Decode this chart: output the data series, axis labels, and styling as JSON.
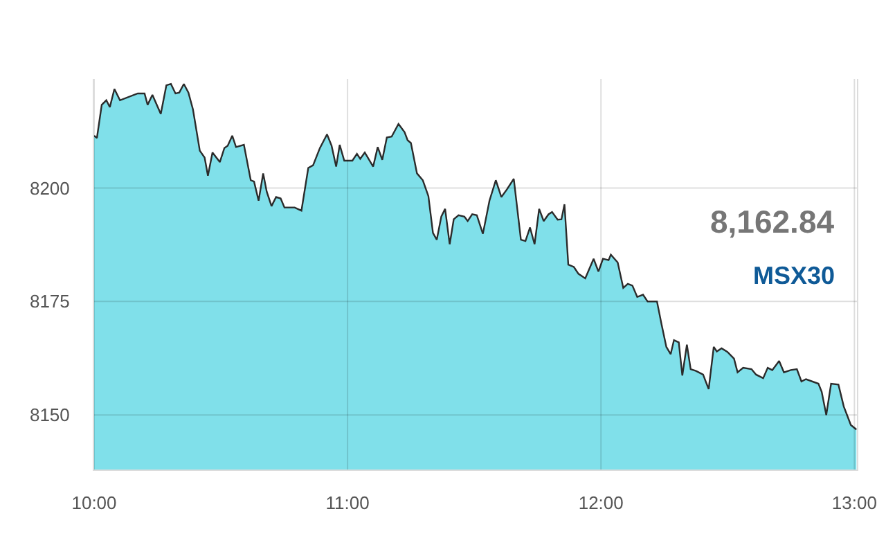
{
  "chart_data": {
    "type": "area",
    "color": "#80e0ea",
    "x": [
      10.0,
      10.011,
      10.03,
      10.048,
      10.062,
      10.08,
      10.102,
      10.172,
      10.199,
      10.211,
      10.23,
      10.263,
      10.285,
      10.303,
      10.321,
      10.336,
      10.354,
      10.372,
      10.39,
      10.417,
      10.436,
      10.449,
      10.467,
      10.496,
      10.514,
      10.527,
      10.545,
      10.56,
      10.591,
      10.618,
      10.631,
      10.649,
      10.667,
      10.681,
      10.7,
      10.718,
      10.736,
      10.751,
      10.791,
      10.818,
      10.845,
      10.864,
      10.891,
      10.919,
      10.937,
      10.955,
      10.969,
      10.987,
      11.019,
      11.037,
      11.05,
      11.068,
      11.101,
      11.119,
      11.137,
      11.155,
      11.174,
      11.201,
      11.225,
      11.237,
      11.25,
      11.274,
      11.297,
      11.319,
      11.337,
      11.352,
      11.37,
      11.385,
      11.403,
      11.419,
      11.438,
      11.461,
      11.474,
      11.492,
      11.51,
      11.534,
      11.56,
      11.585,
      11.607,
      11.629,
      11.656,
      11.684,
      11.702,
      11.72,
      11.738,
      11.756,
      11.774,
      11.793,
      11.807,
      11.829,
      11.844,
      11.856,
      11.871,
      11.893,
      11.911,
      11.938,
      11.971,
      11.99,
      12.008,
      12.03,
      12.039,
      12.066,
      12.088,
      12.106,
      12.124,
      12.143,
      12.166,
      12.184,
      12.221,
      12.239,
      12.258,
      12.275,
      12.288,
      12.307,
      12.321,
      12.339,
      12.354,
      12.375,
      12.403,
      12.425,
      12.445,
      12.457,
      12.476,
      12.499,
      12.525,
      12.539,
      12.561,
      12.594,
      12.612,
      12.64,
      12.658,
      12.676,
      12.703,
      12.722,
      12.749,
      12.773,
      12.791,
      12.809,
      12.858,
      12.871,
      12.889,
      12.908,
      12.937,
      12.958,
      12.986,
      13.008
    ],
    "values": [
      8211.5,
      8211,
      8218.3,
      8219.3,
      8217.8,
      8221.8,
      8219.3,
      8220.8,
      8220.8,
      8218.3,
      8220.5,
      8216.3,
      8222.6,
      8222.9,
      8220.8,
      8221,
      8222.9,
      8221,
      8217.3,
      8208.2,
      8206.7,
      8202.7,
      8207.8,
      8205.7,
      8208.8,
      8209.3,
      8211.5,
      8209,
      8209.5,
      8201.7,
      8201.4,
      8197.2,
      8203.2,
      8199.2,
      8196,
      8198,
      8197.7,
      8195.7,
      8195.7,
      8195,
      8204.4,
      8205,
      8208.8,
      8211.8,
      8209.3,
      8204.7,
      8209.5,
      8206,
      8206,
      8207.5,
      8206.4,
      8207.8,
      8204.7,
      8209,
      8206.2,
      8211.1,
      8211.3,
      8214.1,
      8212.3,
      8210.5,
      8209.9,
      8203.2,
      8201.7,
      8198.2,
      8190.1,
      8188.6,
      8193.7,
      8195.4,
      8187.6,
      8193.1,
      8194,
      8193.7,
      8192.7,
      8194.2,
      8194,
      8189.9,
      8197.2,
      8201.7,
      8198,
      8199.7,
      8202,
      8188.6,
      8188.3,
      8191.3,
      8187.6,
      8195.4,
      8192.7,
      8194.2,
      8194.7,
      8193,
      8193.1,
      8196.4,
      8183.1,
      8182.6,
      8181.1,
      8180.1,
      8184.4,
      8181.6,
      8184.4,
      8184.1,
      8185.3,
      8183.6,
      8178,
      8178.9,
      8178.5,
      8176,
      8176.5,
      8175,
      8175,
      8170,
      8165,
      8163.4,
      8166.5,
      8166,
      8158.7,
      8165.5,
      8160.1,
      8159.7,
      8158.9,
      8155.7,
      8165,
      8164,
      8164.7,
      8163.9,
      8162.4,
      8159.4,
      8160.4,
      8160.1,
      8158.9,
      8158.1,
      8160.4,
      8159.9,
      8161.9,
      8159.4,
      8159.9,
      8160.1,
      8157.4,
      8157.9,
      8156.9,
      8155.1,
      8150,
      8156.9,
      8156.7,
      8151.9,
      8147.8,
      8146.8
    ],
    "xlim": [
      10,
      13.01
    ],
    "xticks": [
      {
        "value": 10,
        "label": "10:00"
      },
      {
        "value": 11,
        "label": "11:00"
      },
      {
        "value": 12,
        "label": "12:00"
      },
      {
        "value": 13,
        "label": "13:00"
      }
    ],
    "ylim": [
      8138,
      8224
    ],
    "yticks": [
      8150,
      8175,
      8200
    ],
    "grid": true,
    "line_style": "solid",
    "annotations": [
      "8,162.84",
      "MSX30"
    ]
  }
}
